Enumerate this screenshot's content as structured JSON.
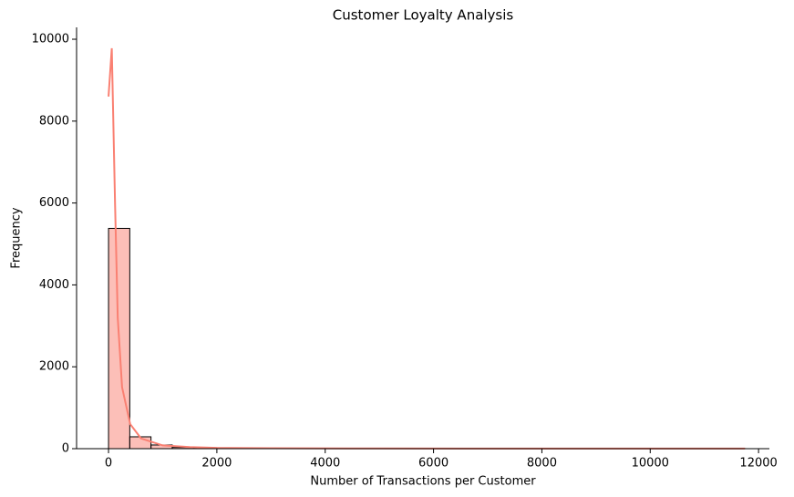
{
  "chart_data": {
    "type": "histogram",
    "title": "Customer Loyalty Analysis",
    "x_label": "Number of Transactions per Customer",
    "y_label": "Frequency",
    "bins": [
      0,
      392,
      784,
      1176,
      1568,
      1960,
      2352,
      2744,
      3136,
      3528,
      3920,
      4312,
      4704,
      5096,
      5488,
      5880,
      6272,
      6664,
      7056,
      7448,
      7840,
      8232,
      8624,
      9016,
      9408,
      9800,
      10192,
      10584,
      10976,
      11368,
      11760
    ],
    "counts": [
      5380,
      290,
      90,
      30,
      15,
      10,
      6,
      5,
      4,
      3,
      3,
      2,
      2,
      2,
      1,
      1,
      1,
      1,
      1,
      1,
      1,
      1,
      1,
      1,
      1,
      1,
      1,
      1,
      1,
      1
    ],
    "color": "#fa8072",
    "kde_x": [
      0,
      60,
      120,
      170,
      250,
      400,
      600,
      1000,
      1500,
      2000,
      3000,
      5000,
      8000,
      11750
    ],
    "kde_values": [
      8600,
      9780,
      6000,
      3200,
      1500,
      600,
      250,
      80,
      40,
      20,
      10,
      5,
      3,
      2
    ],
    "xlim": [
      -590,
      12200
    ],
    "ylim": [
      0,
      10290
    ],
    "xticks": [
      0,
      2000,
      4000,
      6000,
      8000,
      10000,
      12000
    ],
    "yticks": [
      0,
      2000,
      4000,
      6000,
      8000,
      10000
    ]
  }
}
